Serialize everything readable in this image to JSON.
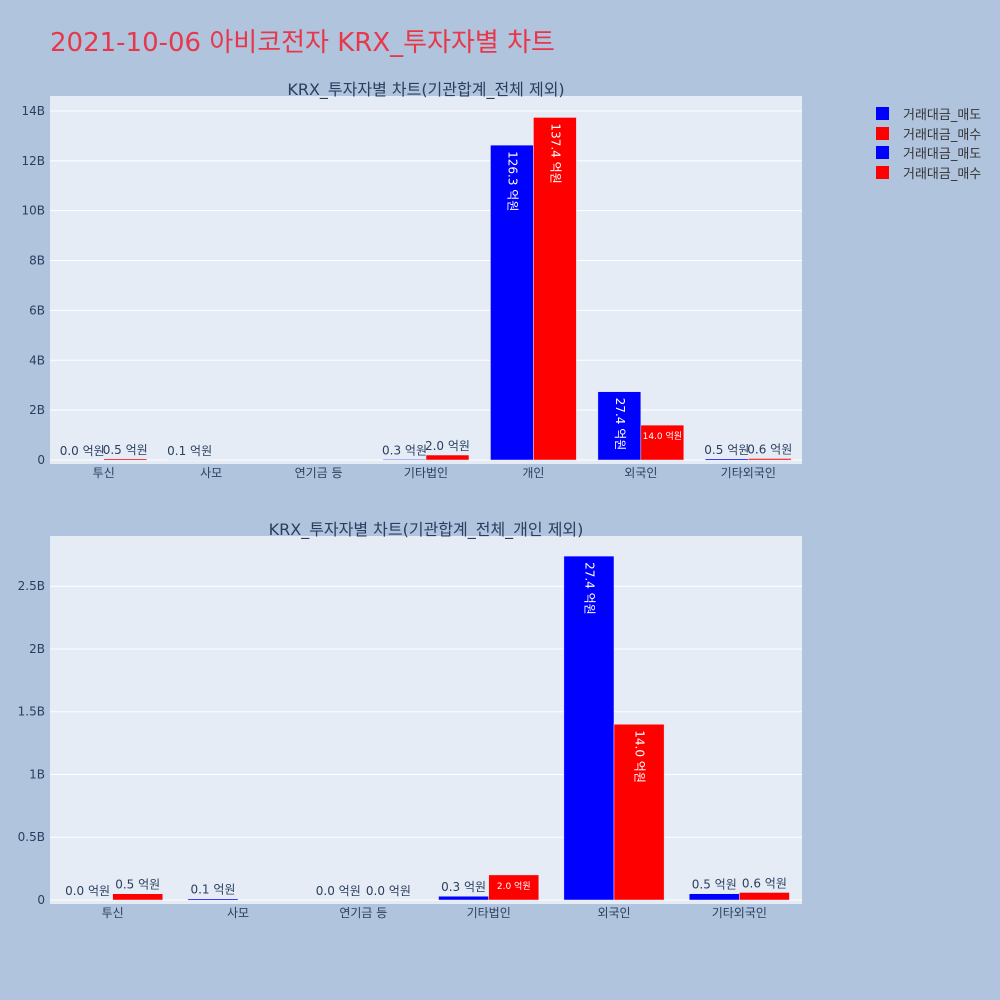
{
  "page_title": "2021-10-06 아비코전자 KRX_투자자별 차트",
  "legend": [
    {
      "label": "거래대금_매도",
      "color": "#0000ff"
    },
    {
      "label": "거래대금_매수",
      "color": "#ff0000"
    },
    {
      "label": "거래대금_매도",
      "color": "#0000ff"
    },
    {
      "label": "거래대금_매수",
      "color": "#ff0000"
    }
  ],
  "colors": {
    "plot_bg": "#e5ecf6",
    "page_bg": "#b0c4de",
    "sell": "#0000ff",
    "buy": "#ff0000",
    "title": "#e8374b"
  },
  "chart_data": [
    {
      "type": "bar",
      "title": "KRX_투자자별 차트(기관합계_전체 제외)",
      "categories": [
        "투신",
        "사모",
        "연기금 등",
        "기타법인",
        "개인",
        "외국인",
        "기타외국인"
      ],
      "ylim": [
        0,
        14600000000
      ],
      "yticks": [
        0,
        2000000000,
        4000000000,
        6000000000,
        8000000000,
        10000000000,
        12000000000,
        14000000000
      ],
      "ytick_labels": [
        "0",
        "2B",
        "4B",
        "6B",
        "8B",
        "10B",
        "12B",
        "14B"
      ],
      "grid": true,
      "series": [
        {
          "name": "거래대금_매도",
          "color": "#0000ff",
          "values": [
            0,
            10000000,
            0,
            30000000,
            12630000000,
            2740000000,
            50000000
          ],
          "labels": [
            "0.0 억원",
            "0.1 억원",
            "",
            "0.3 억원",
            "126.3 억원",
            "27.4 억원",
            "0.5 억원"
          ]
        },
        {
          "name": "거래대금_매수",
          "color": "#ff0000",
          "values": [
            50000000,
            0,
            0,
            200000000,
            13740000000,
            1400000000,
            60000000
          ],
          "labels": [
            "0.5 억원",
            "",
            "",
            "2.0 억원",
            "137.4 억원",
            "14.0 억원",
            "0.6 억원"
          ]
        }
      ]
    },
    {
      "type": "bar",
      "title": "KRX_투자자별 차트(기관합계_전체_개인 제외)",
      "categories": [
        "투신",
        "사모",
        "연기금 등",
        "기타법인",
        "외국인",
        "기타외국인"
      ],
      "ylim": [
        0,
        2900000000
      ],
      "yticks": [
        0,
        500000000,
        1000000000,
        1500000000,
        2000000000,
        2500000000
      ],
      "ytick_labels": [
        "0",
        "0.5B",
        "1B",
        "1.5B",
        "2B",
        "2.5B"
      ],
      "grid": true,
      "series": [
        {
          "name": "거래대금_매도",
          "color": "#0000ff",
          "values": [
            0,
            10000000,
            0,
            30000000,
            2740000000,
            50000000
          ],
          "labels": [
            "0.0 억원",
            "0.1 억원",
            "0.0 억원",
            "0.3 억원",
            "27.4 억원",
            "0.5 억원"
          ]
        },
        {
          "name": "거래대금_매수",
          "color": "#ff0000",
          "values": [
            50000000,
            0,
            0,
            200000000,
            1400000000,
            60000000
          ],
          "labels": [
            "0.5 억원",
            "",
            "0.0 억원",
            "2.0 억원",
            "14.0 억원",
            "0.6 억원"
          ]
        }
      ]
    }
  ]
}
